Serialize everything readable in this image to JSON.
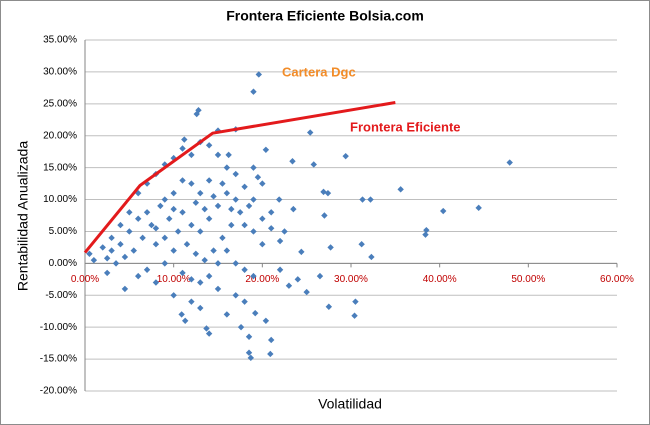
{
  "chart_data": {
    "type": "scatter",
    "title": "Frontera Eficiente Bolsia.com",
    "x_label": "Volatilidad",
    "y_label": "Rentabilidad Anualizada",
    "xlim": [
      0,
      60
    ],
    "ylim": [
      -20,
      35
    ],
    "xticks": [
      {
        "value": 0,
        "label": "0.00%"
      },
      {
        "value": 10,
        "label": "10.00%"
      },
      {
        "value": 20,
        "label": "20.00%"
      },
      {
        "value": 30,
        "label": "30.00%"
      },
      {
        "value": 40,
        "label": "40.00%"
      },
      {
        "value": 50,
        "label": "50.00%"
      },
      {
        "value": 60,
        "label": "60.00%"
      }
    ],
    "yticks": [
      {
        "value": -20,
        "label": "-20.00%"
      },
      {
        "value": -15,
        "label": "-15.00%"
      },
      {
        "value": -10,
        "label": "-10.00%"
      },
      {
        "value": -5,
        "label": "-5.00%"
      },
      {
        "value": 0,
        "label": "0.00%"
      },
      {
        "value": 5,
        "label": "5.00%"
      },
      {
        "value": 10,
        "label": "10.00%"
      },
      {
        "value": 15,
        "label": "15.00%"
      },
      {
        "value": 20,
        "label": "20.00%"
      },
      {
        "value": 25,
        "label": "25.00%"
      },
      {
        "value": 30,
        "label": "30.00%"
      },
      {
        "value": 35,
        "label": "35.00%"
      }
    ],
    "grid": true,
    "points": {
      "color": "#4a7ebb",
      "x": [
        47.9,
        44.4,
        40.4,
        38.5,
        38.4,
        35.6,
        32.2,
        31.3,
        31.2,
        32.3,
        30.5,
        29.4,
        30.4,
        27.7,
        27.4,
        26.9,
        27.0,
        27.5,
        26.5,
        25.8,
        25.4,
        23.4,
        24.4,
        25.0,
        23.0,
        22.5,
        21.9,
        21.0,
        20.9,
        18.5,
        18.7,
        17.6,
        18.5,
        14.0,
        13.7,
        11.3,
        10.9,
        20.4,
        19.2,
        19.6,
        19.0,
        12.8,
        12.6,
        17.0,
        15.0,
        11.2,
        20.4,
        16.2,
        19.0,
        20.0,
        21.0,
        20.0,
        22.0,
        19.0,
        17.0,
        15.0,
        13.0,
        12.0,
        10.0,
        8.0,
        6.0,
        4.5,
        2.5,
        1.0,
        0.5,
        2.0,
        3.0,
        4.0,
        5.0,
        6.0,
        7.0,
        8.0,
        9.0,
        10.0,
        11.0,
        12.0,
        13.0,
        14.0,
        15.0,
        16.0,
        17.0,
        18.0,
        19.0,
        17.5,
        16.5,
        15.5,
        14.5,
        13.5,
        12.5,
        11.5,
        10.5,
        9.5,
        8.5,
        7.5,
        6.5,
        5.5,
        4.5,
        3.5,
        2.5,
        7.0,
        9.0,
        11.0,
        13.0,
        14.0,
        12.0,
        10.0,
        9.0,
        11.0,
        12.0,
        13.0,
        14.0,
        15.0,
        16.0,
        17.0,
        18.0,
        19.0,
        20.0,
        16.0,
        15.0,
        17.0,
        18.0,
        14.0,
        12.0,
        10.0,
        8.0,
        7.0,
        6.0,
        5.0,
        4.0,
        3.0,
        8.0,
        9.0,
        10.0,
        11.0,
        12.5,
        13.5,
        15.5,
        14.5,
        16.5,
        18.5,
        19.5,
        21.0,
        22.0,
        23.5,
        24.0,
        18.0,
        16.0,
        13.0
      ],
      "y": [
        15.8,
        8.7,
        8.2,
        5.2,
        4.5,
        11.6,
        10.0,
        10.0,
        3.0,
        1.0,
        -6.0,
        16.8,
        -8.2,
        2.5,
        11.0,
        11.2,
        7.5,
        -6.8,
        -2.0,
        15.5,
        20.5,
        16.0,
        1.8,
        -4.5,
        -3.5,
        5.0,
        10.0,
        -12.0,
        -14.2,
        -14.0,
        -14.8,
        -10.0,
        -11.5,
        -11.0,
        -10.2,
        -9.0,
        -8.0,
        -9.0,
        -7.8,
        29.6,
        26.9,
        24.0,
        23.4,
        21.0,
        20.8,
        19.4,
        17.8,
        17.0,
        15.0,
        12.5,
        8.0,
        3.0,
        -1.0,
        -2.0,
        -5.0,
        -4.0,
        -3.0,
        -6.0,
        -5.0,
        -3.0,
        -2.0,
        -4.0,
        -1.5,
        0.5,
        1.5,
        2.5,
        4.0,
        6.0,
        8.0,
        11.0,
        12.5,
        14.0,
        15.5,
        16.5,
        18.0,
        17.0,
        19.0,
        18.5,
        17.0,
        15.0,
        14.0,
        12.0,
        10.0,
        8.0,
        6.0,
        4.0,
        2.0,
        0.5,
        1.5,
        3.0,
        5.0,
        7.0,
        9.0,
        6.0,
        4.0,
        2.0,
        1.0,
        0.0,
        0.8,
        -1.0,
        0.0,
        -1.5,
        11.0,
        13.0,
        12.5,
        11.0,
        10.0,
        8.0,
        6.0,
        5.0,
        7.0,
        9.0,
        11.0,
        10.0,
        6.0,
        5.0,
        7.0,
        2.0,
        0.0,
        0.0,
        -1.0,
        -2.0,
        -2.5,
        2.0,
        3.0,
        8.0,
        7.0,
        5.0,
        3.0,
        2.0,
        5.5,
        4.0,
        8.5,
        13.0,
        9.5,
        8.5,
        12.5,
        10.5,
        8.5,
        9.0,
        13.5,
        5.5,
        3.5,
        8.5,
        -2.5,
        -6.0,
        -8.0,
        -7.0
      ]
    },
    "frontier": {
      "color": "#e31a1c",
      "x": [
        0,
        6.2,
        14.4,
        35.0
      ],
      "y": [
        1.7,
        12.2,
        20.4,
        25.2
      ]
    },
    "annotations": [
      "Cartera Dgc",
      "Frontera Eficiente"
    ]
  }
}
